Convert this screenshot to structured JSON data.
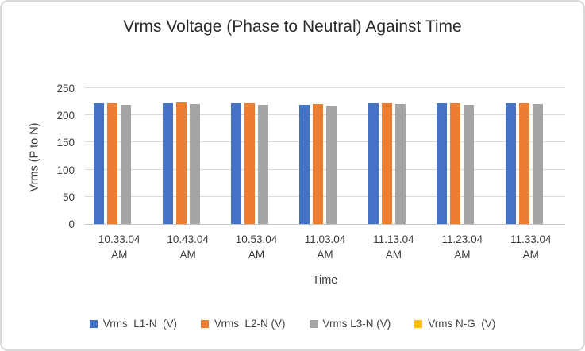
{
  "chart_data": {
    "type": "bar",
    "title": "Vrms Voltage (Phase to Neutral) Against Time",
    "xlabel": "Time",
    "ylabel": "Vrms (P to N)",
    "ylim": [
      0,
      250
    ],
    "yticks": [
      0,
      50,
      100,
      150,
      200,
      250
    ],
    "grid": true,
    "legend_position": "bottom",
    "categories": [
      "10.33.04 AM",
      "10.43.04 AM",
      "10.53.04 AM",
      "11.03.04 AM",
      "11.13.04 AM",
      "11.23.04 AM",
      "11.33.04 AM"
    ],
    "series": [
      {
        "name": "Vrms  L1-N  (V)",
        "color": "#4472C4",
        "values": [
          223,
          224,
          223,
          221,
          224,
          223,
          223
        ]
      },
      {
        "name": "Vrms  L2-N (V)",
        "color": "#ED7D31",
        "values": [
          224,
          225,
          224,
          222,
          224,
          224,
          224
        ]
      },
      {
        "name": "Vrms L3-N (V)",
        "color": "#A5A5A5",
        "values": [
          221,
          222,
          221,
          219,
          222,
          221,
          222
        ]
      },
      {
        "name": "Vrms N-G  (V)",
        "color": "#FFC000",
        "values": [
          0,
          0,
          0,
          0,
          0,
          0,
          0
        ]
      }
    ]
  },
  "colors": {
    "gridline": "#d9d9d9",
    "axis_line": "#c6c6c6",
    "border": "#d9d9d9",
    "title_text": "#2b2b2b",
    "label_text": "#3a3a3a"
  }
}
